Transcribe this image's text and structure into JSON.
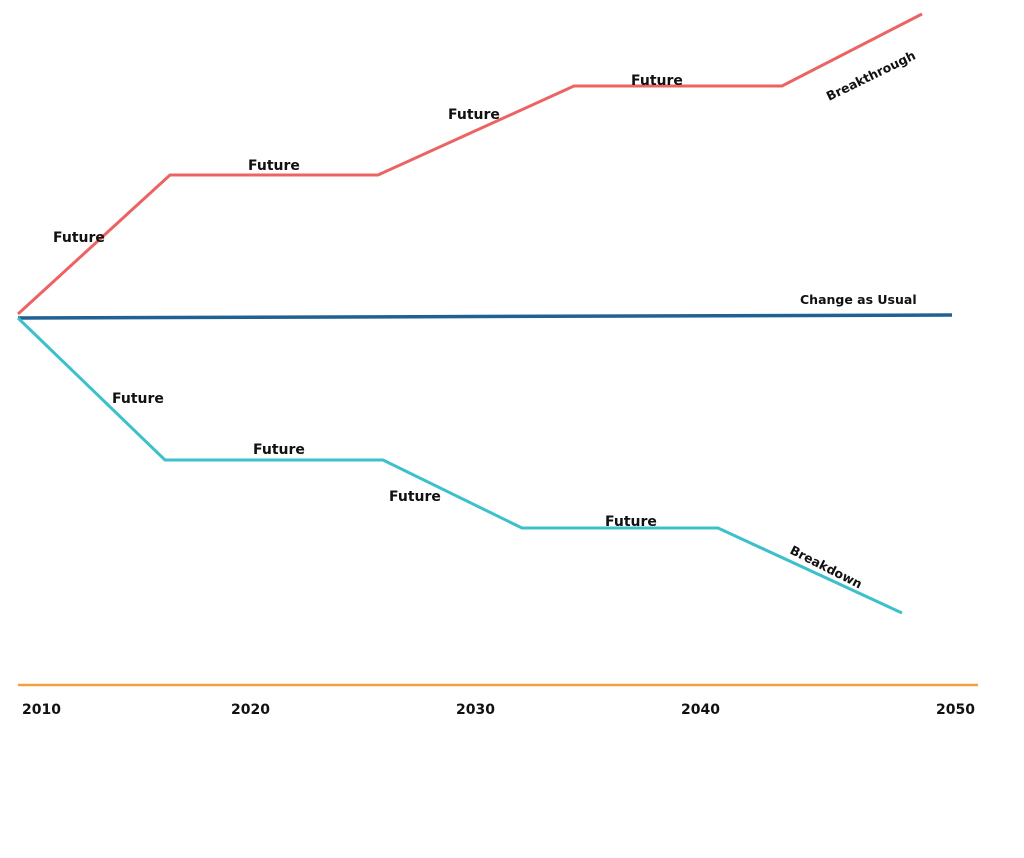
{
  "diagram": {
    "colors": {
      "breakthrough": "#ec6363",
      "usual": "#1f6193",
      "breakdown": "#3cc0cc",
      "axis": "#f5a040"
    },
    "axis_years": [
      "2010",
      "2020",
      "2030",
      "2040",
      "2050"
    ],
    "paths": {
      "breakthrough": {
        "end_label": "Breakthrough",
        "segment_labels": [
          "Future",
          "Future",
          "Future",
          "Future"
        ]
      },
      "usual": {
        "end_label": "Change as Usual"
      },
      "breakdown": {
        "end_label": "Breakdown",
        "segment_labels": [
          "Future",
          "Future",
          "Future",
          "Future"
        ]
      }
    }
  }
}
